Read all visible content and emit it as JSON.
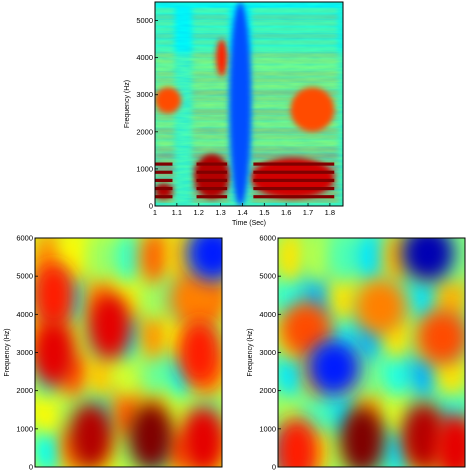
{
  "chart_data": [
    {
      "type": "heatmap",
      "name": "spectrogram-top",
      "xlabel": "Time (Sec)",
      "ylabel": "Frequency (Hz)",
      "xlim": [
        1.0,
        1.86
      ],
      "ylim": [
        0,
        5500
      ],
      "xticks": [
        "1",
        "1.1",
        "1.2",
        "1.3",
        "1.4",
        "1.5",
        "1.6",
        "1.7",
        "1.8"
      ],
      "xtick_values": [
        1.0,
        1.1,
        1.2,
        1.3,
        1.4,
        1.5,
        1.6,
        1.7,
        1.8
      ],
      "yticks": [
        "0",
        "1000",
        "2000",
        "3000",
        "4000",
        "5000"
      ],
      "ytick_values": [
        0,
        1000,
        2000,
        3000,
        4000,
        5000
      ],
      "colormap": "jet",
      "grid": false,
      "intensity_features": [
        {
          "x_range": [
            1.0,
            1.08
          ],
          "y_range": [
            200,
            600
          ],
          "level": 0.95
        },
        {
          "x_range": [
            1.18,
            1.34
          ],
          "y_range": [
            200,
            1400
          ],
          "level": 0.95
        },
        {
          "x_range": [
            1.28,
            1.33
          ],
          "y_range": [
            3500,
            4500
          ],
          "level": 0.85
        },
        {
          "x_range": [
            1.44,
            1.82
          ],
          "y_range": [
            200,
            1300
          ],
          "level": 0.92
        },
        {
          "x_range": [
            1.62,
            1.82
          ],
          "y_range": [
            2000,
            3200
          ],
          "level": 0.8
        },
        {
          "x_range": [
            1.0,
            1.12
          ],
          "y_range": [
            2500,
            3200
          ],
          "level": 0.8
        },
        {
          "x_range": [
            1.34,
            1.44
          ],
          "y_range": [
            0,
            5500
          ],
          "level": 0.2
        }
      ]
    },
    {
      "type": "heatmap",
      "name": "map-bottom-left",
      "xlabel": "",
      "ylabel": "Frequency (Hz)",
      "ylim": [
        0,
        6000
      ],
      "yticks": [
        "0",
        "1000",
        "2000",
        "3000",
        "4000",
        "5000",
        "6000"
      ],
      "ytick_values": [
        0,
        1000,
        2000,
        3000,
        4000,
        5000,
        6000
      ],
      "colormap": "jet",
      "grid": false,
      "intensity_features": [
        {
          "x_frac": 0.1,
          "y": 4500,
          "level": 0.85
        },
        {
          "x_frac": 0.1,
          "y": 3000,
          "level": 0.9
        },
        {
          "x_frac": 0.4,
          "y": 3700,
          "level": 0.9
        },
        {
          "x_frac": 0.85,
          "y": 4400,
          "level": 0.75
        },
        {
          "x_frac": 0.88,
          "y": 3000,
          "level": 0.85
        },
        {
          "x_frac": 0.3,
          "y": 800,
          "level": 0.95
        },
        {
          "x_frac": 0.62,
          "y": 800,
          "level": 1.0
        },
        {
          "x_frac": 0.9,
          "y": 700,
          "level": 0.9
        },
        {
          "x_frac": 0.95,
          "y": 5600,
          "level": 0.15
        }
      ]
    },
    {
      "type": "heatmap",
      "name": "map-bottom-right",
      "xlabel": "",
      "ylabel": "Frequency (Hz)",
      "ylim": [
        0,
        6000
      ],
      "yticks": [
        "0",
        "1000",
        "2000",
        "3000",
        "4000",
        "5000",
        "6000"
      ],
      "ytick_values": [
        0,
        1000,
        2000,
        3000,
        4000,
        5000,
        6000
      ],
      "colormap": "jet",
      "grid": false,
      "intensity_features": [
        {
          "x_frac": 0.45,
          "y": 700,
          "level": 1.0
        },
        {
          "x_frac": 0.78,
          "y": 800,
          "level": 0.95
        },
        {
          "x_frac": 0.95,
          "y": 500,
          "level": 0.9
        },
        {
          "x_frac": 0.1,
          "y": 400,
          "level": 0.85
        },
        {
          "x_frac": 0.15,
          "y": 3600,
          "level": 0.8
        },
        {
          "x_frac": 0.55,
          "y": 4200,
          "level": 0.75
        },
        {
          "x_frac": 0.88,
          "y": 3400,
          "level": 0.8
        },
        {
          "x_frac": 0.8,
          "y": 5600,
          "level": 0.05
        },
        {
          "x_frac": 0.3,
          "y": 2600,
          "level": 0.15
        }
      ]
    }
  ]
}
